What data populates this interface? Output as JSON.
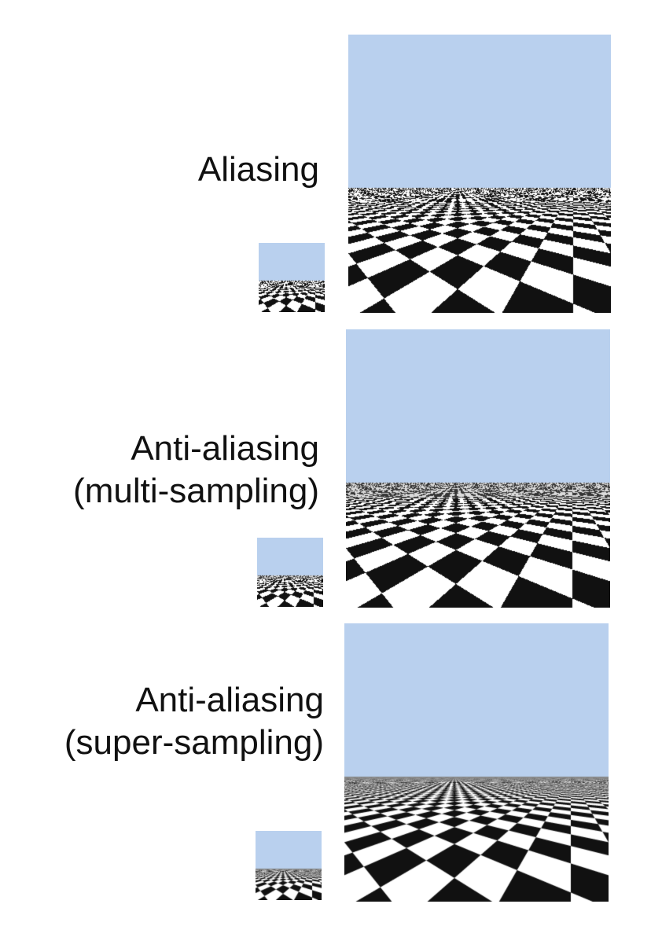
{
  "rows": [
    {
      "label_lines": [
        "Aliasing"
      ],
      "mode": "aliased"
    },
    {
      "label_lines": [
        "Anti-aliasing",
        "(multi-sampling)"
      ],
      "mode": "multisample"
    },
    {
      "label_lines": [
        "Anti-aliasing",
        "(super-sampling)"
      ],
      "mode": "supersample"
    }
  ],
  "colors": {
    "sky": "#b9d0ee",
    "dark": "#111111",
    "light": "#ffffff"
  }
}
